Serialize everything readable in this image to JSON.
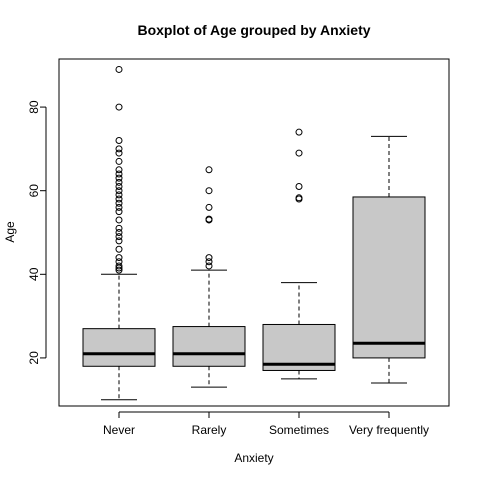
{
  "chart_data": {
    "type": "boxplot",
    "title": "Boxplot of Age grouped by Anxiety",
    "xlabel": "Anxiety",
    "ylabel": "Age",
    "ylim": [
      8.5,
      91.5
    ],
    "yticks": [
      20,
      40,
      60,
      80
    ],
    "box_fill": "#c8c8c8",
    "categories": [
      "Never",
      "Rarely",
      "Sometimes",
      "Very frequently"
    ],
    "boxes": [
      {
        "category": "Never",
        "whisker_low": 10,
        "q1": 18,
        "median": 21,
        "q3": 27,
        "whisker_high": 40,
        "outliers": [
          41,
          41.5,
          42,
          43,
          44,
          46,
          48,
          49,
          50,
          51,
          53,
          55,
          56,
          57,
          58,
          59,
          60,
          61,
          62,
          63,
          64,
          65,
          67,
          69,
          70,
          72,
          80,
          89
        ]
      },
      {
        "category": "Rarely",
        "whisker_low": 13,
        "q1": 18,
        "median": 21,
        "q3": 27.5,
        "whisker_high": 41,
        "outliers": [
          42,
          43,
          44,
          53,
          53.2,
          56,
          60,
          65
        ]
      },
      {
        "category": "Sometimes",
        "whisker_low": 15,
        "q1": 17,
        "median": 18.5,
        "q3": 28,
        "whisker_high": 38,
        "outliers": [
          58,
          58.3,
          61,
          69,
          74
        ]
      },
      {
        "category": "Very frequently",
        "whisker_low": 14,
        "q1": 20,
        "median": 23.5,
        "q3": 58.5,
        "whisker_high": 73,
        "outliers": []
      }
    ]
  }
}
